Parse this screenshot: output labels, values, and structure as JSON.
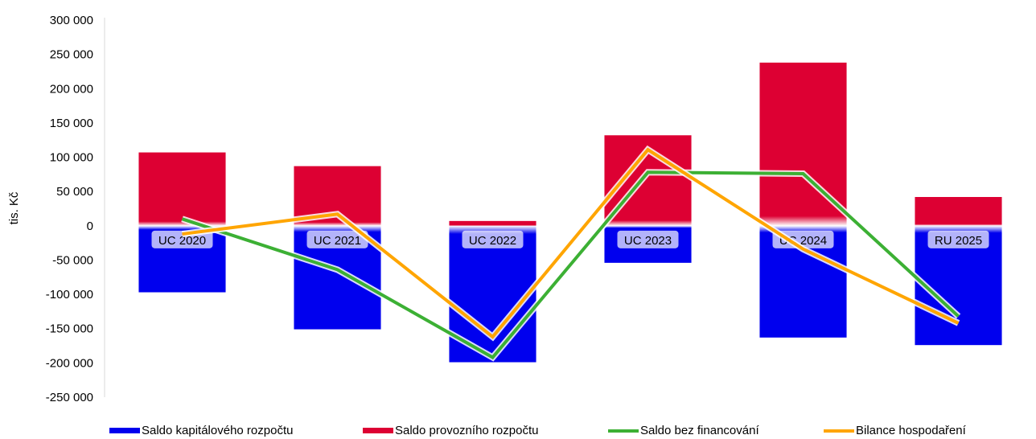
{
  "chart_data": {
    "type": "bar",
    "ylabel": "tis. Kč",
    "ylim": [
      -250000,
      300000
    ],
    "yticks": [
      300000,
      250000,
      200000,
      150000,
      100000,
      50000,
      0,
      -50000,
      -100000,
      -150000,
      -200000,
      -250000
    ],
    "ytick_labels": [
      "300 000",
      "250 000",
      "200 000",
      "150 000",
      "100 000",
      "50 000",
      "0",
      "-50 000",
      "-100 000",
      "-150 000",
      "-200 000",
      "-250 000"
    ],
    "categories": [
      "UC 2020",
      "UC 2021",
      "UC 2022",
      "UC 2023",
      "UC 2024",
      "RU 2025"
    ],
    "series": [
      {
        "name": "Saldo kapitálového rozpočtu",
        "kind": "bar",
        "color": "#0000ee",
        "values": [
          -97000,
          -151000,
          -199000,
          -54000,
          -163000,
          -174000
        ]
      },
      {
        "name": "Saldo provozního rozpočtu",
        "kind": "bar",
        "color": "#dd0033",
        "values": [
          107000,
          87000,
          7000,
          132000,
          238000,
          42000
        ]
      },
      {
        "name": "Saldo bez financování",
        "kind": "line",
        "color": "#3cb034",
        "values": [
          10000,
          -64000,
          -192000,
          78000,
          76000,
          -132000
        ]
      },
      {
        "name": "Bilance hospodaření",
        "kind": "line",
        "color": "#ffa500",
        "values": [
          -12000,
          17000,
          -162000,
          111000,
          -34000,
          -142000
        ]
      }
    ],
    "legend_position": "bottom",
    "grid": false
  }
}
